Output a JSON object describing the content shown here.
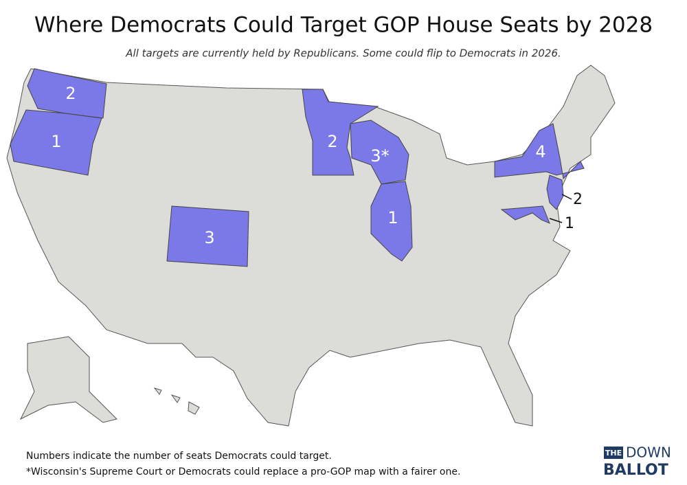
{
  "header": {
    "title": "Where Democrats Could Target GOP House Seats by 2028",
    "subtitle": "All targets are currently held by Republicans. Some could flip to Democrats in 2026."
  },
  "map": {
    "targets": [
      "2",
      "1",
      "3",
      "2",
      "3*",
      "1",
      "4",
      "2",
      "1"
    ]
  },
  "notes": [
    "Numbers indicate the number of seats Democrats could target.",
    "*Wisconsin's Supreme Court or Democrats could replace a pro-GOP map with a fairer one."
  ],
  "logo": {
    "the": "THE",
    "down": "DOWN",
    "ballot": "BALLOT"
  }
}
